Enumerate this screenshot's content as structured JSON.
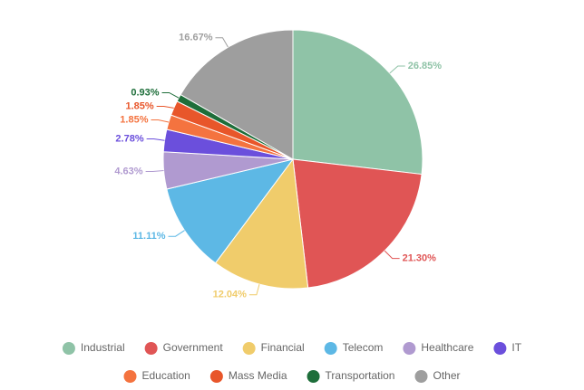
{
  "chart_data": {
    "type": "pie",
    "categories": [
      "Industrial",
      "Government",
      "Financial",
      "Telecom",
      "Healthcare",
      "IT",
      "Education",
      "Mass Media",
      "Transportation",
      "Other"
    ],
    "values": [
      26.85,
      21.3,
      12.04,
      11.11,
      4.63,
      2.78,
      1.85,
      1.85,
      0.93,
      16.67
    ],
    "value_labels": [
      "26.85%",
      "21.30%",
      "12.04%",
      "11.11%",
      "4.63%",
      "2.78%",
      "1.85%",
      "1.85%",
      "0.93%",
      "16.67%"
    ],
    "colors": [
      "#8fc3a7",
      "#e05555",
      "#f0cc6b",
      "#5db8e5",
      "#b09ad0",
      "#6b4fdc",
      "#f4733f",
      "#e8562a",
      "#1e6e3a",
      "#9e9e9e"
    ],
    "legend": "bottom"
  }
}
